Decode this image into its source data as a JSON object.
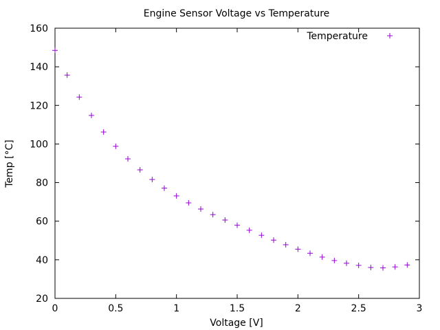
{
  "chart_data": {
    "type": "scatter",
    "title": "Engine Sensor Voltage vs Temperature",
    "xlabel": "Voltage [V]",
    "ylabel": "Temp [°C]",
    "xlim": [
      0,
      3
    ],
    "ylim": [
      20,
      160
    ],
    "xticks": [
      0,
      0.5,
      1,
      1.5,
      2,
      2.5,
      3
    ],
    "xtick_labels": [
      "0",
      "0.5",
      "1",
      "1.5",
      "2",
      "2.5",
      "3"
    ],
    "yticks": [
      20,
      40,
      60,
      80,
      100,
      120,
      140,
      160
    ],
    "ytick_labels": [
      "20",
      "40",
      "60",
      "80",
      "100",
      "120",
      "140",
      "160"
    ],
    "grid": false,
    "legend_position": "top-right",
    "series": [
      {
        "name": "Temperature",
        "color": "#9400d3",
        "marker": "plus",
        "x": [
          0,
          0.1,
          0.2,
          0.3,
          0.4,
          0.5,
          0.6,
          0.7,
          0.8,
          0.9,
          1.0,
          1.1,
          1.2,
          1.3,
          1.4,
          1.5,
          1.6,
          1.7,
          1.8,
          1.9,
          2.0,
          2.1,
          2.2,
          2.3,
          2.4,
          2.5,
          2.6,
          2.7,
          2.8,
          2.9
        ],
        "y": [
          148.5,
          135.7,
          124.3,
          114.8,
          106.2,
          98.8,
          92.3,
          86.6,
          81.6,
          77.1,
          73.1,
          69.5,
          66.3,
          63.4,
          60.6,
          57.9,
          55.3,
          52.7,
          50.2,
          47.8,
          45.5,
          43.4,
          41.4,
          39.6,
          38.2,
          37.1,
          36.0,
          35.8,
          36.3,
          37.3
        ]
      }
    ]
  }
}
